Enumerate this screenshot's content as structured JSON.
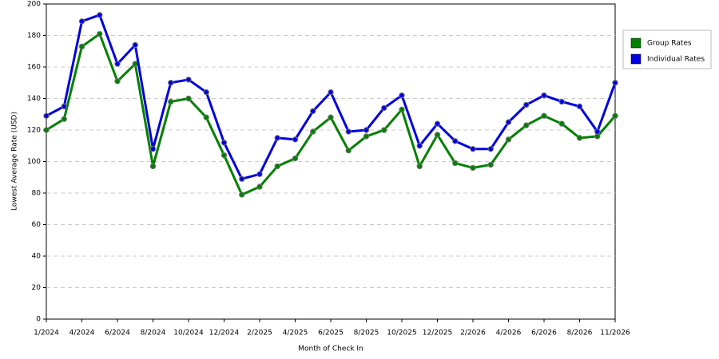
{
  "chart_data": {
    "type": "line",
    "x_label": "Month of Check In",
    "y_label": "Lowest Average Rate (USD)",
    "categories": [
      "1/2024",
      null,
      "4/2024",
      null,
      "6/2024",
      null,
      "8/2024",
      null,
      "10/2024",
      null,
      "12/2024",
      null,
      "2/2025",
      null,
      "4/2025",
      null,
      "6/2025",
      null,
      "8/2025",
      null,
      "10/2025",
      null,
      "12/2025",
      null,
      "2/2026",
      null,
      "4/2026",
      null,
      "6/2026",
      null,
      "8/2026",
      null,
      "11/2026"
    ],
    "series": [
      {
        "name": "Group Rates",
        "color": "#008000",
        "values": [
          120,
          127,
          173,
          181,
          151,
          162,
          97,
          138,
          140,
          128,
          104,
          79,
          84,
          97,
          102,
          119,
          128,
          107,
          116,
          120,
          133,
          97,
          117,
          99,
          96,
          98,
          114,
          123,
          129,
          124,
          115,
          116,
          129
        ]
      },
      {
        "name": "Individual Rates",
        "color": "#0000e0",
        "values": [
          129,
          135,
          189,
          193,
          162,
          174,
          108,
          150,
          152,
          144,
          112,
          89,
          92,
          115,
          114,
          132,
          144,
          119,
          120,
          134,
          142,
          110,
          124,
          113,
          108,
          108,
          125,
          136,
          142,
          138,
          135,
          119,
          150
        ]
      }
    ],
    "ylim": [
      0,
      200
    ],
    "yticks": [
      0,
      20,
      40,
      60,
      80,
      100,
      120,
      140,
      160,
      180,
      200
    ],
    "grid": true,
    "legend": "right"
  }
}
